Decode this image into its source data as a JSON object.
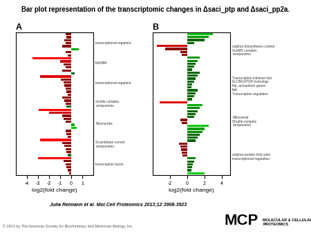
{
  "title": "Bar plot representation of the transcriptomic changes in Δsaci_ptp and Δsaci_pp2a.",
  "annotations": [
    "Julia Reimann et al. Mol Cell Proteomics 2013;12:3908-3923",
    "© 2013 by The American Society for Biochemistry and Molecular Biology, Inc.",
    "MCP",
    "MOLECULAR & CELLULAR\nPROTEOMICS"
  ],
  "chart_data": [
    {
      "type": "bar",
      "orientation": "horizontal",
      "title": "A",
      "x_label": "log2(fold change)",
      "tick_labels": "x",
      "categories": [
        null,
        null,
        null,
        null,
        null,
        null,
        null,
        null,
        null,
        null,
        null,
        null,
        null,
        null,
        null,
        null,
        null,
        null,
        null,
        null,
        null,
        null,
        null,
        null,
        null,
        null,
        null,
        null,
        null,
        null,
        null,
        null,
        null,
        null,
        null,
        null,
        null,
        null,
        null,
        null,
        null,
        null,
        null,
        null,
        null,
        null,
        null
      ],
      "values": [
        -0.5,
        -0.4,
        -0.6,
        -0.5,
        -0.8,
        0.7,
        -0.5,
        -0.3,
        -3.5,
        -1.0,
        -0.7,
        -0.5,
        -0.8,
        0.3,
        -2.8,
        -0.9,
        -0.7,
        -0.6,
        -0.5,
        -0.4,
        -0.3,
        -0.8,
        -0.6,
        -0.5,
        -0.4,
        -2.9,
        -2.0,
        -0.8,
        -0.7,
        -0.5,
        0.3,
        0.5,
        -0.5,
        -0.4,
        -0.3,
        -2.8,
        -0.8,
        -0.6,
        -0.5,
        -0.4,
        -0.3,
        -3.0,
        -0.7,
        -0.5,
        -0.4,
        -0.3,
        -0.2
      ],
      "colors": [
        "#8b0000",
        "#8b0000",
        "#8b0000",
        "#8b0000",
        "#8b0000",
        "#00aa00",
        "#8b0000",
        "#8b0000",
        "#ff0000",
        "#cc0000",
        "#8b0000",
        "#8b0000",
        "#8b0000",
        "#006400",
        "#dd0000",
        "#8b0000",
        "#8b0000",
        "#8b0000",
        "#8b0000",
        "#8b0000",
        "#8b0000",
        "#8b0000",
        "#8b0000",
        "#8b0000",
        "#006400",
        "#ff0000",
        "#cc0000",
        "#8b0000",
        "#8b0000",
        "#8b0000",
        "#00aa00",
        "#00cc00",
        "#8b0000",
        "#8b0000",
        "#8b0000",
        "#ff0000",
        "#8b0000",
        "#8b0000",
        "#8b0000",
        "#8b0000",
        "#006400",
        "#ff0000",
        "#8b0000",
        "#8b0000",
        "#8b0000",
        "#8b0000",
        "#8b0000"
      ],
      "xlim": [
        -5,
        2
      ],
      "xticks": [
        -4,
        -3,
        -2,
        -1,
        0,
        1
      ],
      "annotations": [
        "transcriptional regulator",
        "fla5/flIM",
        "transcriptional regulator",
        "shuttle complex\ncomponents",
        "Rosma-like",
        "Scramblase control\ncomponents",
        "transcription factor"
      ]
    },
    {
      "type": "bar",
      "orientation": "horizontal",
      "title": "B",
      "x_label": "log2(fold change)",
      "tick_labels": "x",
      "categories": [
        null,
        null,
        null,
        null,
        null,
        null,
        null,
        null,
        null,
        null,
        null,
        null,
        null,
        null,
        null,
        null,
        null,
        null,
        null,
        null,
        null,
        null,
        null,
        null,
        null,
        null,
        null,
        null,
        null,
        null,
        null,
        null,
        null,
        null,
        null,
        null,
        null,
        null,
        null,
        null,
        null,
        null,
        null,
        null,
        null,
        null,
        null,
        null
      ],
      "values": [
        3.0,
        2.5,
        2.0,
        0.8,
        -3.5,
        -2.5,
        -0.8,
        -0.6,
        1.5,
        1.2,
        1.0,
        0.8,
        0.6,
        1.5,
        1.2,
        1.0,
        0.8,
        0.6,
        0.5,
        1.2,
        1.0,
        0.8,
        0.6,
        -3.2,
        1.8,
        1.5,
        1.2,
        1.0,
        0.8,
        -0.8,
        -0.6,
        2.5,
        2.0,
        1.8,
        1.5,
        1.2,
        1.0,
        -0.9,
        -0.8,
        -0.7,
        -0.6,
        -0.5,
        1.0,
        0.8,
        0.7,
        0.6,
        0.5,
        2.0
      ],
      "colors": [
        "#00cc00",
        "#009900",
        "#006400",
        "#006400",
        "#cc0000",
        "#8b0000",
        "#8b0000",
        "#8b0000",
        "#009900",
        "#008800",
        "#006400",
        "#006400",
        "#006400",
        "#006400",
        "#006400",
        "#006400",
        "#006400",
        "#006400",
        "#006400",
        "#006400",
        "#006400",
        "#006400",
        "#006400",
        "#dd0000",
        "#00aa00",
        "#008800",
        "#006400",
        "#006400",
        "#006400",
        "#8b0000",
        "#8b0000",
        "#00cc00",
        "#009900",
        "#008800",
        "#006400",
        "#006400",
        "#006400",
        "#8b0000",
        "#8b0000",
        "#8b0000",
        "#8b0000",
        "#8b0000",
        "#008800",
        "#006400",
        "#006400",
        "#006400",
        "#006400",
        "#00cc00"
      ],
      "xlim": [
        -4,
        5
      ],
      "xticks": [
        -2,
        0,
        2,
        4
      ],
      "annotations": [
        "sulphur biosynthesis control\nSoxMS complex\ncomponents",
        "Transcription initiation fact\nELONGATOR homologs\nflaj, archaellum genes\nflaK\nTranscription regulation",
        "Ribosomal\nShuttle complex\ncomponents",
        "sulphur-protein thiol sites\ntranscriptional regulation"
      ]
    }
  ]
}
